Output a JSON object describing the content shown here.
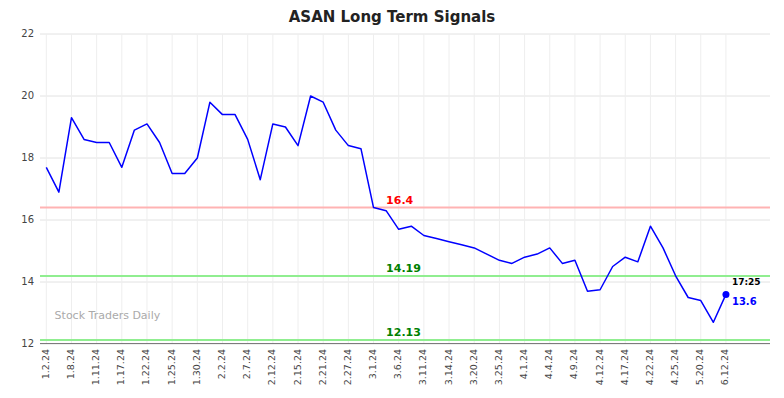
{
  "chart_data": {
    "type": "line",
    "title": "ASAN Long Term Signals",
    "categories": [
      "1.2.24",
      null,
      "1.8.24",
      null,
      "1.11.24",
      null,
      "1.17.24",
      null,
      "1.22.24",
      null,
      "1.25.24",
      null,
      "1.30.24",
      null,
      "2.2.24",
      null,
      "2.7.24",
      null,
      "2.12.24",
      null,
      "2.15.24",
      null,
      "2.21.24",
      null,
      "2.27.24",
      null,
      "3.1.24",
      null,
      "3.6.24",
      null,
      "3.11.24",
      null,
      "3.14.24",
      null,
      "3.20.24",
      null,
      "3.25.24",
      null,
      "4.1.24",
      null,
      "4.4.24",
      null,
      "4.9.24",
      null,
      "4.12.24",
      null,
      "4.17.24",
      null,
      "4.22.24",
      null,
      "4.25.24",
      null,
      "5.20.24",
      null,
      "6.12.24"
    ],
    "values": [
      17.7,
      16.9,
      19.3,
      18.6,
      18.5,
      18.5,
      17.7,
      18.9,
      19.1,
      18.5,
      17.5,
      17.5,
      18.0,
      19.8,
      19.4,
      19.4,
      18.6,
      17.3,
      19.1,
      19.0,
      18.4,
      20.0,
      19.8,
      18.9,
      18.4,
      18.3,
      16.4,
      16.3,
      15.7,
      15.8,
      15.5,
      15.4,
      15.3,
      15.2,
      15.1,
      14.9,
      14.7,
      14.6,
      14.8,
      14.9,
      15.1,
      14.6,
      14.7,
      13.7,
      13.75,
      14.5,
      14.8,
      14.65,
      15.8,
      15.1,
      14.2,
      13.5,
      13.4,
      12.7,
      13.6
    ],
    "color": "blue",
    "reference_lines": [
      {
        "value": 16.4,
        "label": "16.4",
        "color": "#ffb3b3",
        "label_color": "red"
      },
      {
        "value": 14.19,
        "label": "14.19",
        "color": "#90EE90",
        "label_color": "green"
      },
      {
        "value": 12.13,
        "label": "12.13",
        "color": "#90EE90",
        "label_color": "green"
      }
    ],
    "last_price": {
      "value": 13.6,
      "time": "17:25",
      "color": "blue"
    },
    "watermark": "Stock Traders Daily",
    "ylim": [
      12,
      22
    ],
    "yticks": [
      12,
      14,
      16,
      18,
      20,
      22
    ],
    "grid": true
  }
}
